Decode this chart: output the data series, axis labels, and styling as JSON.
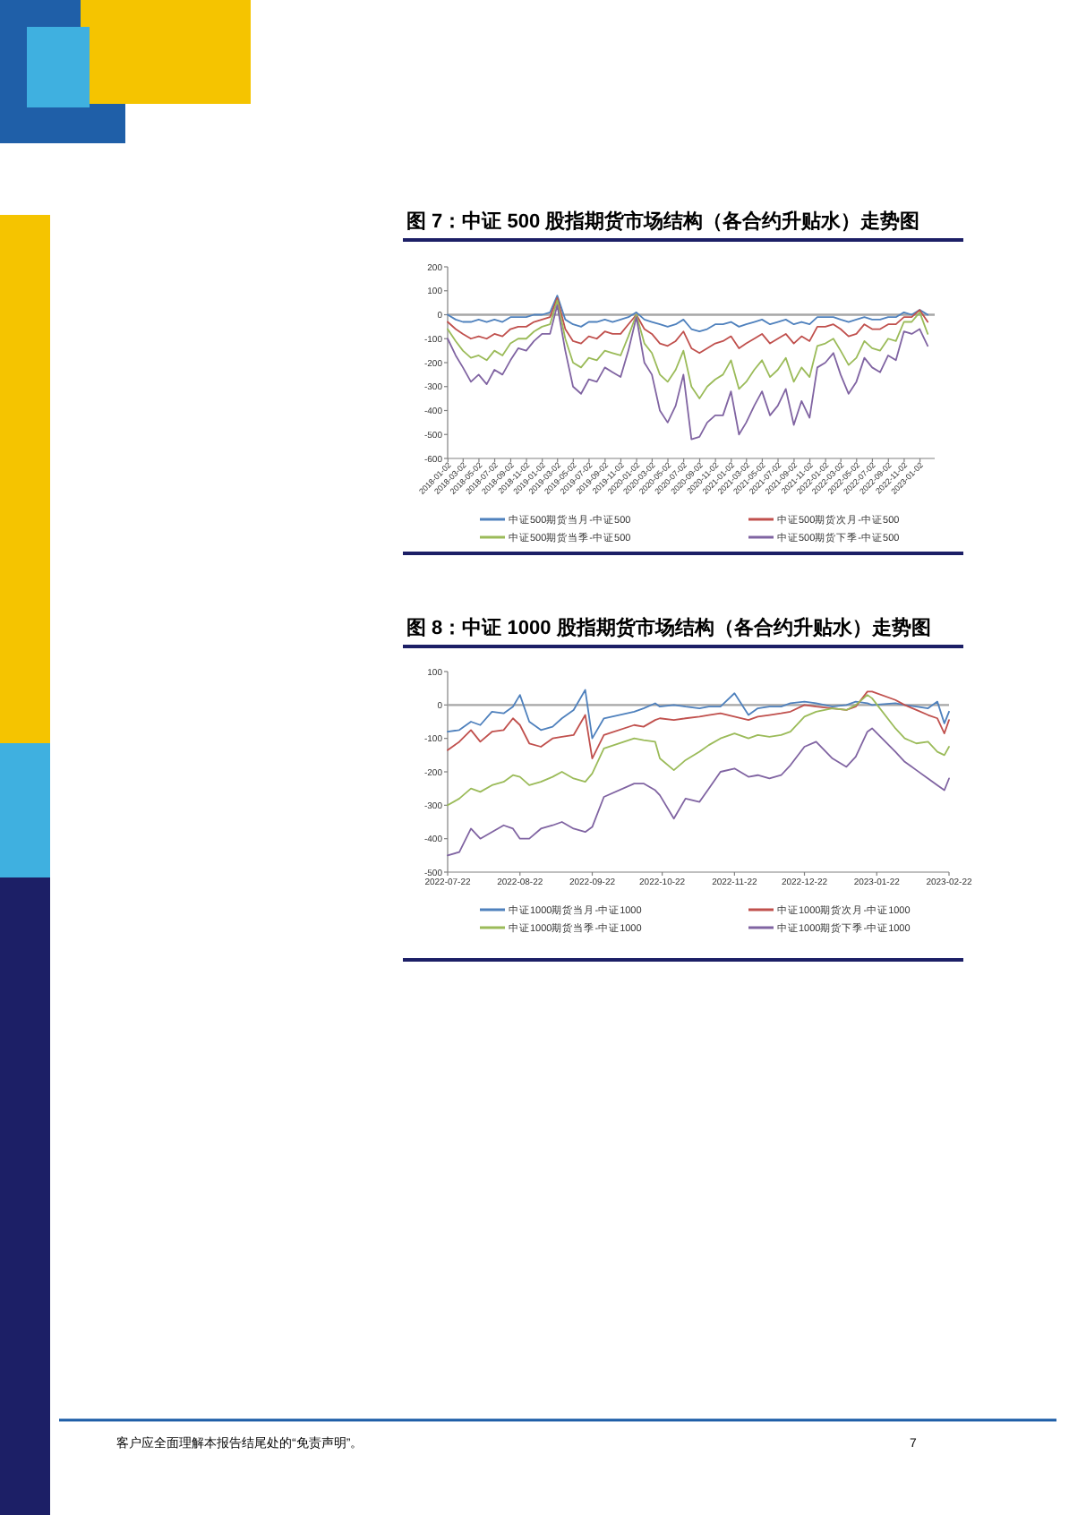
{
  "chart_data": [
    {
      "type": "line",
      "title": "图 7：中证 500 股指期货市场结构（各合约升贴水）走势图",
      "legend": "bottom",
      "x": [
        "2018-01",
        "2018-02",
        "2018-03",
        "2018-04",
        "2018-05",
        "2018-06",
        "2018-07",
        "2018-08",
        "2018-09",
        "2018-10",
        "2018-11",
        "2018-12",
        "2019-01",
        "2019-02",
        "2019-03",
        "2019-04",
        "2019-05",
        "2019-06",
        "2019-07",
        "2019-08",
        "2019-09",
        "2019-10",
        "2019-11",
        "2019-12",
        "2020-01",
        "2020-02",
        "2020-03",
        "2020-04",
        "2020-05",
        "2020-06",
        "2020-07",
        "2020-08",
        "2020-09",
        "2020-10",
        "2020-11",
        "2020-12",
        "2021-01",
        "2021-02",
        "2021-03",
        "2021-04",
        "2021-05",
        "2021-06",
        "2021-07",
        "2021-08",
        "2021-09",
        "2021-10",
        "2021-11",
        "2021-12",
        "2022-01",
        "2022-02",
        "2022-03",
        "2022-04",
        "2022-05",
        "2022-06",
        "2022-07",
        "2022-08",
        "2022-09",
        "2022-10",
        "2022-11",
        "2022-12",
        "2023-01",
        "2023-02"
      ],
      "series": [
        {
          "name": "中证500期货当月-中证500",
          "color": "#4f81bd",
          "values": [
            0,
            -20,
            -30,
            -30,
            -20,
            -30,
            -20,
            -30,
            -10,
            -10,
            -10,
            0,
            0,
            10,
            80,
            -20,
            -40,
            -50,
            -30,
            -30,
            -20,
            -30,
            -20,
            -10,
            10,
            -20,
            -30,
            -40,
            -50,
            -40,
            -20,
            -60,
            -70,
            -60,
            -40,
            -40,
            -30,
            -50,
            -40,
            -30,
            -20,
            -40,
            -30,
            -20,
            -40,
            -30,
            -40,
            -10,
            -10,
            -10,
            -20,
            -30,
            -20,
            -10,
            -20,
            -20,
            -10,
            -10,
            10,
            0,
            20,
            0
          ]
        },
        {
          "name": "中证500期货次月-中证500",
          "color": "#c0504d",
          "values": [
            -30,
            -60,
            -80,
            -100,
            -90,
            -100,
            -80,
            -90,
            -60,
            -50,
            -50,
            -30,
            -20,
            -10,
            70,
            -60,
            -110,
            -120,
            -90,
            -100,
            -70,
            -80,
            -80,
            -40,
            0,
            -60,
            -80,
            -120,
            -130,
            -110,
            -70,
            -140,
            -160,
            -140,
            -120,
            -110,
            -90,
            -140,
            -120,
            -100,
            -80,
            -120,
            -100,
            -80,
            -120,
            -90,
            -110,
            -50,
            -50,
            -40,
            -60,
            -90,
            -80,
            -40,
            -60,
            -60,
            -40,
            -40,
            -10,
            -10,
            20,
            -30
          ]
        },
        {
          "name": "中证500期货当季-中证500",
          "color": "#9bbb59",
          "values": [
            -60,
            -110,
            -150,
            -180,
            -170,
            -190,
            -150,
            -170,
            -120,
            -100,
            -100,
            -70,
            -50,
            -40,
            60,
            -100,
            -200,
            -220,
            -180,
            -190,
            -150,
            -160,
            -170,
            -90,
            0,
            -120,
            -160,
            -250,
            -280,
            -230,
            -150,
            -300,
            -350,
            -300,
            -270,
            -250,
            -190,
            -310,
            -280,
            -230,
            -190,
            -260,
            -230,
            -180,
            -280,
            -220,
            -260,
            -130,
            -120,
            -100,
            -150,
            -210,
            -180,
            -110,
            -140,
            -150,
            -100,
            -110,
            -30,
            -30,
            10,
            -80
          ]
        },
        {
          "name": "中证500期货下季-中证500",
          "color": "#8064a2",
          "values": [
            -100,
            -170,
            -220,
            -280,
            -250,
            -290,
            -230,
            -250,
            -190,
            -140,
            -150,
            -110,
            -80,
            -80,
            40,
            -150,
            -300,
            -330,
            -270,
            -280,
            -220,
            -240,
            -260,
            -150,
            -10,
            -200,
            -250,
            -400,
            -450,
            -380,
            -250,
            -520,
            -510,
            -450,
            -420,
            -420,
            -320,
            -500,
            -450,
            -380,
            -320,
            -420,
            -380,
            -310,
            -460,
            -360,
            -430,
            -220,
            -200,
            -160,
            -250,
            -330,
            -280,
            -180,
            -220,
            -240,
            -170,
            -190,
            -70,
            -80,
            -60,
            -130
          ]
        }
      ],
      "xlim": [
        "2018-01-01",
        "2023-02-28"
      ],
      "xticks": [
        {
          "value": "2018-01-02",
          "label": "2018-01-02"
        },
        {
          "value": "2018-03-02",
          "label": "2018-03-02"
        },
        {
          "value": "2018-05-02",
          "label": "2018-05-02"
        },
        {
          "value": "2018-07-02",
          "label": "2018-07-02"
        },
        {
          "value": "2018-09-02",
          "label": "2018-09-02"
        },
        {
          "value": "2018-11-02",
          "label": "2018-11-02"
        },
        {
          "value": "2019-01-02",
          "label": "2019-01-02"
        },
        {
          "value": "2019-03-02",
          "label": "2019-03-02"
        },
        {
          "value": "2019-05-02",
          "label": "2019-05-02"
        },
        {
          "value": "2019-07-02",
          "label": "2019-07-02"
        },
        {
          "value": "2019-09-02",
          "label": "2019-09-02"
        },
        {
          "value": "2019-11-02",
          "label": "2019-11-02"
        },
        {
          "value": "2020-01-02",
          "label": "2020-01-02"
        },
        {
          "value": "2020-03-02",
          "label": "2020-03-02"
        },
        {
          "value": "2020-05-02",
          "label": "2020-05-02"
        },
        {
          "value": "2020-07-02",
          "label": "2020-07-02"
        },
        {
          "value": "2020-09-02",
          "label": "2020-09-02"
        },
        {
          "value": "2020-11-02",
          "label": "2020-11-02"
        },
        {
          "value": "2021-01-02",
          "label": "2021-01-02"
        },
        {
          "value": "2021-03-02",
          "label": "2021-03-02"
        },
        {
          "value": "2021-05-02",
          "label": "2021-05-02"
        },
        {
          "value": "2021-07-02",
          "label": "2021-07-02"
        },
        {
          "value": "2021-09-02",
          "label": "2021-09-02"
        },
        {
          "value": "2021-11-02",
          "label": "2021-11-02"
        },
        {
          "value": "2022-01-02",
          "label": "2022-01-02"
        },
        {
          "value": "2022-03-02",
          "label": "2022-03-02"
        },
        {
          "value": "2022-05-02",
          "label": "2022-05-02"
        },
        {
          "value": "2022-07-02",
          "label": "2022-07-02"
        },
        {
          "value": "2022-09-02",
          "label": "2022-09-02"
        },
        {
          "value": "2022-11-02",
          "label": "2022-11-02"
        },
        {
          "value": "2023-01-02",
          "label": "2023-01-02"
        }
      ],
      "ylim": [
        -600,
        200
      ],
      "yticks": [
        -600,
        -500,
        -400,
        -300,
        -200,
        -100,
        0,
        100,
        200
      ],
      "ref_lines": [
        {
          "axis": "y",
          "value": 0,
          "color": "#a6a6a6"
        }
      ]
    },
    {
      "type": "line",
      "title": "图 8：中证 1000 股指期货市场结构（各合约升贴水）走势图",
      "legend": "bottom",
      "x": [
        "2022-07-22",
        "2022-07-27",
        "2022-08-01",
        "2022-08-05",
        "2022-08-10",
        "2022-08-15",
        "2022-08-19",
        "2022-08-22",
        "2022-08-26",
        "2022-08-31",
        "2022-09-05",
        "2022-09-09",
        "2022-09-14",
        "2022-09-19",
        "2022-09-22",
        "2022-09-27",
        "2022-10-10",
        "2022-10-14",
        "2022-10-19",
        "2022-10-21",
        "2022-10-27",
        "2022-11-01",
        "2022-11-07",
        "2022-11-11",
        "2022-11-16",
        "2022-11-22",
        "2022-11-28",
        "2022-12-02",
        "2022-12-07",
        "2022-12-12",
        "2022-12-16",
        "2022-12-22",
        "2022-12-27",
        "2023-01-03",
        "2023-01-09",
        "2023-01-13",
        "2023-01-18",
        "2023-01-20",
        "2023-01-30",
        "2023-02-03",
        "2023-02-08",
        "2023-02-13",
        "2023-02-17",
        "2023-02-20",
        "2023-02-22"
      ],
      "series": [
        {
          "name": "中证1000期货当月-中证1000",
          "color": "#4f81bd",
          "values": [
            -80,
            -75,
            -50,
            -60,
            -20,
            -25,
            -5,
            30,
            -50,
            -75,
            -65,
            -40,
            -15,
            45,
            -100,
            -40,
            -20,
            -10,
            5,
            -5,
            0,
            -5,
            -10,
            -5,
            -5,
            35,
            -30,
            -10,
            -5,
            -5,
            5,
            10,
            5,
            -5,
            0,
            10,
            5,
            0,
            5,
            0,
            -5,
            -10,
            10,
            -55,
            -20
          ]
        },
        {
          "name": "中证1000期货次月-中证1000",
          "color": "#c0504d",
          "values": [
            -135,
            -110,
            -75,
            -110,
            -80,
            -75,
            -40,
            -60,
            -115,
            -125,
            -100,
            -95,
            -90,
            -30,
            -160,
            -90,
            -60,
            -65,
            -45,
            -40,
            -45,
            -40,
            -35,
            -30,
            -25,
            -35,
            -45,
            -35,
            -30,
            -25,
            -20,
            0,
            -5,
            -10,
            -15,
            -5,
            40,
            40,
            15,
            0,
            -15,
            -30,
            -40,
            -85,
            -45
          ]
        },
        {
          "name": "中证1000期货当季-中证1000",
          "color": "#9bbb59",
          "values": [
            -300,
            -280,
            -250,
            -260,
            -240,
            -230,
            -210,
            -215,
            -240,
            -230,
            -215,
            -200,
            -220,
            -230,
            -205,
            -130,
            -100,
            -105,
            -110,
            -160,
            -195,
            -165,
            -140,
            -120,
            -100,
            -85,
            -100,
            -90,
            -95,
            -90,
            -80,
            -35,
            -20,
            -10,
            -15,
            0,
            30,
            20,
            -70,
            -100,
            -115,
            -110,
            -140,
            -150,
            -125
          ]
        },
        {
          "name": "中证1000期货下季-中证1000",
          "color": "#8064a2",
          "values": [
            -450,
            -440,
            -370,
            -400,
            -380,
            -360,
            -370,
            -400,
            -400,
            -370,
            -360,
            -350,
            -370,
            -380,
            -365,
            -275,
            -235,
            -235,
            -255,
            -270,
            -340,
            -280,
            -290,
            -250,
            -200,
            -190,
            -215,
            -210,
            -220,
            -210,
            -180,
            -125,
            -110,
            -160,
            -185,
            -155,
            -80,
            -70,
            -140,
            -170,
            -195,
            -220,
            -240,
            -255,
            -220
          ]
        }
      ],
      "xlim": [
        "2022-07-22",
        "2023-02-22"
      ],
      "xticks": [
        {
          "value": "2022-07-22",
          "label": "2022-07-22"
        },
        {
          "value": "2022-08-22",
          "label": "2022-08-22"
        },
        {
          "value": "2022-09-22",
          "label": "2022-09-22"
        },
        {
          "value": "2022-10-22",
          "label": "2022-10-22"
        },
        {
          "value": "2022-11-22",
          "label": "2022-11-22"
        },
        {
          "value": "2022-12-22",
          "label": "2022-12-22"
        },
        {
          "value": "2023-01-22",
          "label": "2023-01-22"
        },
        {
          "value": "2023-02-22",
          "label": "2023-02-22"
        }
      ],
      "ylim": [
        -500,
        100
      ],
      "yticks": [
        -500,
        -400,
        -300,
        -200,
        -100,
        0,
        100
      ],
      "ref_lines": [
        {
          "axis": "y",
          "value": 0,
          "color": "#a6a6a6"
        }
      ]
    },
    {
      "type": "other",
      "annotations": [
        "客户应全面理解本报告结尾处的“免责声明”。",
        "7"
      ]
    }
  ]
}
